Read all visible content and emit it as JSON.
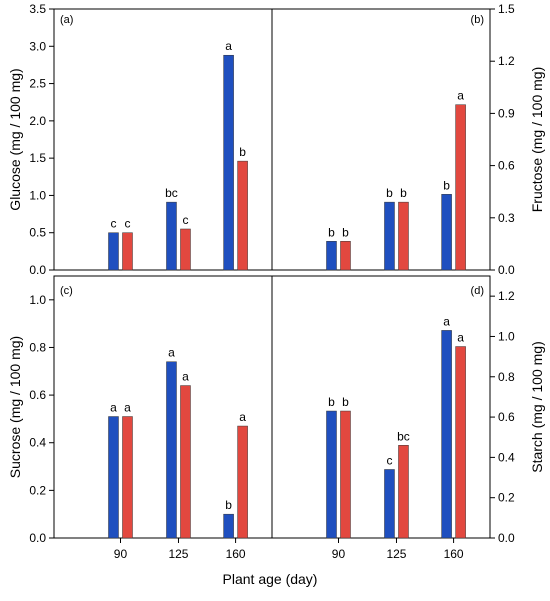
{
  "shared_xlabel": "Plant age (day)",
  "colors": {
    "series_blue": "#1f4fbf",
    "series_red": "#e2483f",
    "axis": "#000000"
  },
  "chart_data": [
    {
      "panel": "(a)",
      "type": "bar",
      "categories": [
        "90",
        "125",
        "160"
      ],
      "ylabel": "Glucose (mg / 100 mg)",
      "ylim": [
        0,
        3.5
      ],
      "yticks": [
        "0.0",
        "0.5",
        "1.0",
        "1.5",
        "2.0",
        "2.5",
        "3.0",
        "3.5"
      ],
      "series": [
        {
          "values": [
            0.5,
            0.91,
            2.88
          ],
          "labels": [
            "c",
            "bc",
            "a"
          ]
        },
        {
          "values": [
            0.5,
            0.55,
            1.46
          ],
          "labels": [
            "c",
            "c",
            "b"
          ]
        }
      ]
    },
    {
      "panel": "(b)",
      "type": "bar",
      "categories": [
        "90",
        "125",
        "160"
      ],
      "ylabel": "Fructose (mg / 100 mg)",
      "ylim": [
        0,
        1.5
      ],
      "yticks": [
        "0.0",
        "0.3",
        "0.6",
        "0.9",
        "1.2",
        "1.5"
      ],
      "series": [
        {
          "values": [
            0.165,
            0.39,
            0.435
          ],
          "labels": [
            "b",
            "b",
            "b"
          ]
        },
        {
          "values": [
            0.165,
            0.39,
            0.95
          ],
          "labels": [
            "b",
            "b",
            "a"
          ]
        }
      ]
    },
    {
      "panel": "(c)",
      "type": "bar",
      "categories": [
        "90",
        "125",
        "160"
      ],
      "ylabel": "Sucrose (mg / 100 mg)",
      "ylim": [
        0,
        1.1
      ],
      "yticks": [
        "0.0",
        "0.2",
        "0.4",
        "0.6",
        "0.8",
        "1.0"
      ],
      "series": [
        {
          "values": [
            0.51,
            0.74,
            0.1
          ],
          "labels": [
            "a",
            "a",
            "b"
          ]
        },
        {
          "values": [
            0.51,
            0.64,
            0.47
          ],
          "labels": [
            "a",
            "a",
            "a"
          ]
        }
      ]
    },
    {
      "panel": "(d)",
      "type": "bar",
      "categories": [
        "90",
        "125",
        "160"
      ],
      "ylabel": "Starch (mg / 100 mg)",
      "ylim": [
        0,
        1.3
      ],
      "yticks": [
        "0.0",
        "0.2",
        "0.4",
        "0.6",
        "0.8",
        "1.0",
        "1.2"
      ],
      "series": [
        {
          "values": [
            0.63,
            0.34,
            1.03
          ],
          "labels": [
            "b",
            "c",
            "a"
          ]
        },
        {
          "values": [
            0.63,
            0.46,
            0.95
          ],
          "labels": [
            "b",
            "bc",
            "a"
          ]
        }
      ]
    }
  ]
}
